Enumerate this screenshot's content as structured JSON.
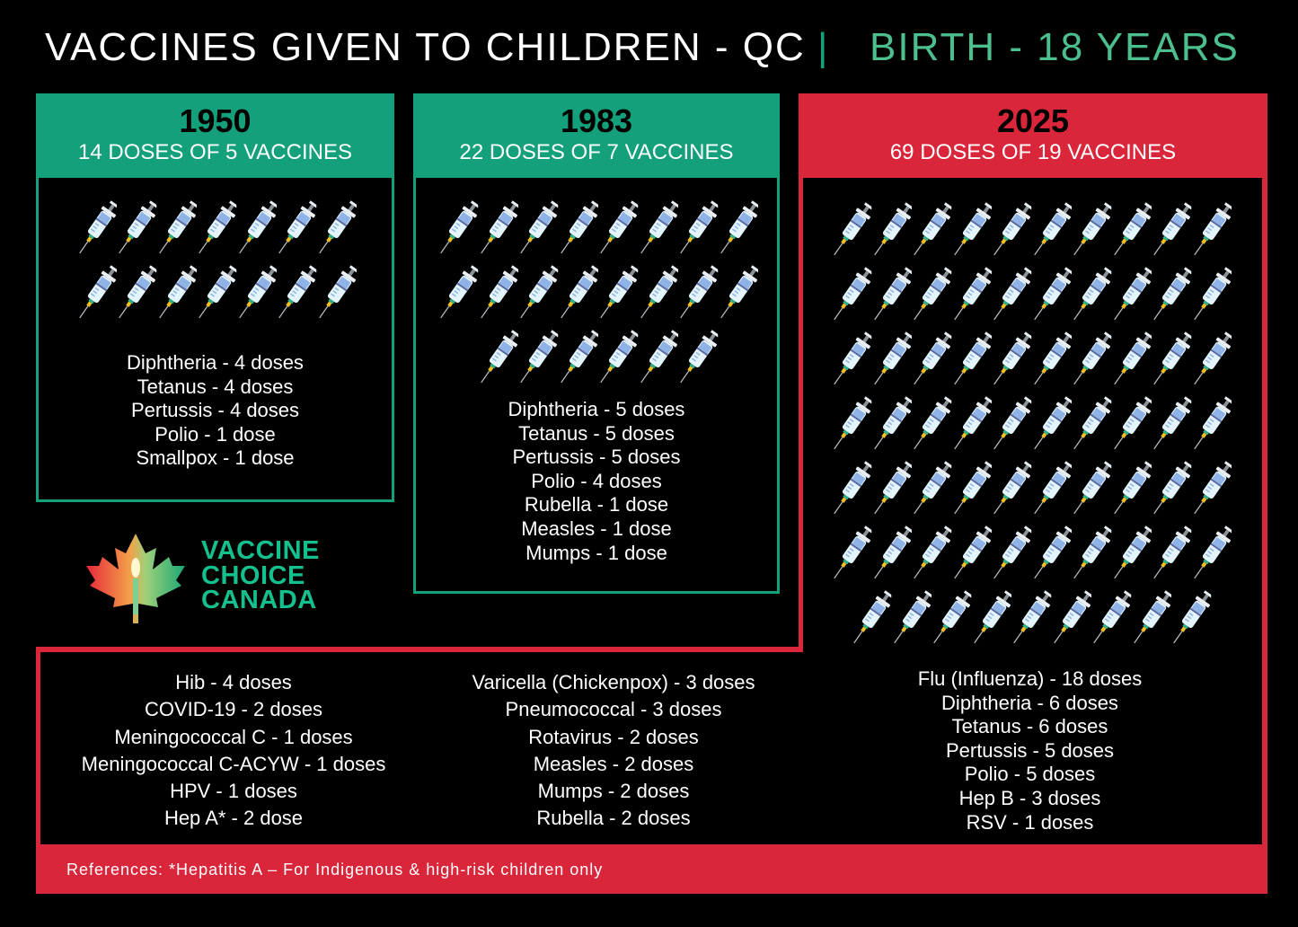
{
  "header": {
    "title": "VACCINES GIVEN TO CHILDREN - QC",
    "separator": "|",
    "subtitle": "BIRTH - 18 YEARS"
  },
  "colors": {
    "green": "#13a07a",
    "red": "#d9263a",
    "accent_text": "#4cbf8e"
  },
  "panels": [
    {
      "year": "1950",
      "summary": "14 DOSES OF 5 VACCINES",
      "syringe_count": 14,
      "items": [
        "Diphtheria - 4 doses",
        "Tetanus - 4 doses",
        "Pertussis - 4 doses",
        "Polio - 1 dose",
        "Smallpox - 1 dose"
      ]
    },
    {
      "year": "1983",
      "summary": "22 DOSES OF 7 VACCINES",
      "syringe_count": 22,
      "items": [
        "Diphtheria - 5 doses",
        "Tetanus - 5 doses",
        "Pertussis - 5 doses",
        "Polio - 4 doses",
        "Rubella - 1 dose",
        "Measles - 1 dose",
        "Mumps - 1 dose"
      ]
    },
    {
      "year": "2025",
      "summary": "69 DOSES OF 19 VACCINES",
      "syringe_count": 69,
      "items": [
        "Flu (Influenza) - 18 doses",
        "Diphtheria - 6 doses",
        "Tetanus - 6 doses",
        "Pertussis - 5 doses",
        "Polio - 5 doses",
        "Hep B - 3 doses",
        "RSV - 1 doses"
      ]
    }
  ],
  "extra_2025": {
    "col1": [
      "Hib - 4 doses",
      "COVID-19 - 2 doses",
      "Meningococcal C - 1 doses",
      "Meningococcal C-ACYW - 1 doses",
      "HPV - 1 doses",
      "Hep A* - 2 dose"
    ],
    "col2": [
      "Varicella (Chickenpox) - 3 doses",
      "Pneumococcal - 3 doses",
      "Rotavirus - 2 doses",
      "Measles - 2 doses",
      "Mumps - 2 doses",
      "Rubella - 2 doses"
    ]
  },
  "references": "References: *Hepatitis A – For Indigenous & high-risk children only",
  "logo": {
    "lines": [
      "VACCINE",
      "CHOICE",
      "CANADA"
    ],
    "icon": "maple-leaf-candle-icon"
  },
  "icon": "syringe-icon"
}
